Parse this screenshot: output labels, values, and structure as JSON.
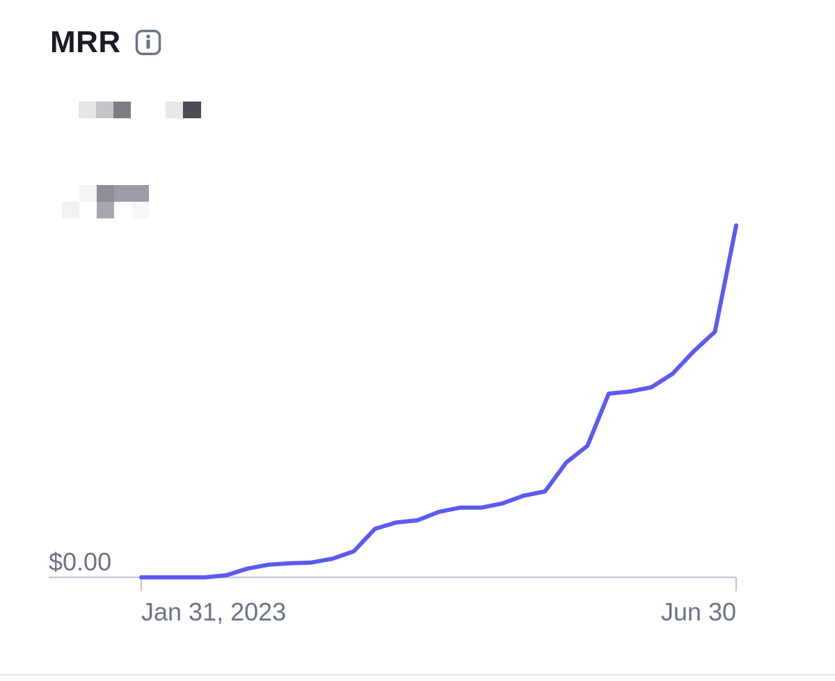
{
  "card": {
    "title": "MRR",
    "info_icon": "info-icon"
  },
  "colors": {
    "line": "#5b5bf0",
    "axis": "#c8ccd6",
    "text": "#6b7385",
    "title": "#1a1b25"
  },
  "chart_data": {
    "type": "line",
    "title": "MRR",
    "y_zero_label": "$0.00",
    "x_start_label": "Jan 31, 2023",
    "x_end_label": "Jun 30",
    "x_range": [
      "2023-01-31",
      "2023-06-30"
    ],
    "ylim": [
      0,
      100
    ],
    "grid": false,
    "series": [
      {
        "name": "",
        "values": [
          0,
          0,
          0,
          0,
          0.6,
          2.5,
          3.6,
          4.0,
          4.2,
          5.3,
          7.4,
          13.8,
          15.6,
          16.2,
          18.6,
          19.8,
          19.8,
          21.0,
          23.2,
          24.4,
          32.6,
          37.4,
          52.2,
          52.8,
          54.0,
          57.8,
          64.2,
          69.8,
          100
        ]
      }
    ]
  }
}
